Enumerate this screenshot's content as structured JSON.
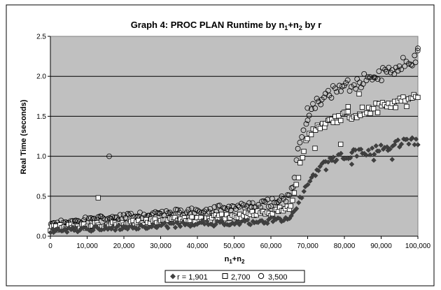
{
  "chart_data": {
    "type": "scatter",
    "title": {
      "main": "Graph 4: PROC PLAN Runtime by n",
      "sub1": "1",
      "mid": "+n",
      "sub2": "2",
      "end": " by r"
    },
    "xlabel": {
      "main": "n",
      "sub1": "1",
      "mid": "+n",
      "sub2": "2"
    },
    "ylabel": "Real Time (seconds)",
    "xlim": [
      0,
      100000
    ],
    "ylim": [
      0,
      2.5
    ],
    "xticks": [
      0,
      10000,
      20000,
      30000,
      40000,
      50000,
      60000,
      70000,
      80000,
      90000,
      100000
    ],
    "xtick_labels": [
      "0",
      "10,000",
      "20,000",
      "30,000",
      "40,000",
      "50,000",
      "60,000",
      "70,000",
      "80,000",
      "90,000",
      "100,000"
    ],
    "yticks": [
      0,
      0.5,
      1.0,
      1.5,
      2.0,
      2.5
    ],
    "ytick_labels": [
      "0.0",
      "0.5",
      "1.0",
      "1.5",
      "2.0",
      "2.5"
    ],
    "grid": "horizontal",
    "plot_background": "#c0c0c0",
    "legend": {
      "placement": "bottom",
      "entries": [
        {
          "label": "r = 1,901",
          "marker": "diamond-filled"
        },
        {
          "label": "2,700",
          "marker": "square-open"
        },
        {
          "label": "3,500",
          "marker": "circle-open"
        }
      ]
    },
    "series": [
      {
        "name": "r = 1,901",
        "marker": "diamond-filled",
        "x": [
          0,
          5000,
          10000,
          15000,
          20000,
          25000,
          30000,
          35000,
          40000,
          45000,
          50000,
          55000,
          60000,
          64000,
          66000,
          68000,
          70000,
          72000,
          74000,
          76000,
          78000,
          80000,
          82000,
          84000,
          86000,
          88000,
          90000,
          92000,
          94000,
          96000,
          98000,
          100000
        ],
        "y": [
          0.06,
          0.08,
          0.09,
          0.1,
          0.11,
          0.12,
          0.13,
          0.14,
          0.15,
          0.16,
          0.17,
          0.18,
          0.2,
          0.22,
          0.26,
          0.45,
          0.65,
          0.8,
          0.9,
          0.95,
          0.98,
          1.0,
          1.03,
          1.05,
          1.06,
          1.08,
          1.1,
          1.12,
          1.14,
          1.16,
          1.18,
          1.2
        ],
        "outliers": [
          [
            75000,
            0.83
          ],
          [
            82000,
            0.9
          ],
          [
            88000,
            0.95
          ],
          [
            93000,
            0.96
          ]
        ]
      },
      {
        "name": "2,700",
        "marker": "square-open",
        "x": [
          0,
          5000,
          10000,
          15000,
          20000,
          25000,
          30000,
          35000,
          40000,
          45000,
          50000,
          55000,
          60000,
          64000,
          66000,
          68000,
          70000,
          72000,
          74000,
          76000,
          78000,
          80000,
          82000,
          84000,
          86000,
          88000,
          90000,
          92000,
          94000,
          96000,
          98000,
          100000
        ],
        "y": [
          0.1,
          0.12,
          0.13,
          0.15,
          0.16,
          0.17,
          0.19,
          0.2,
          0.22,
          0.23,
          0.25,
          0.27,
          0.3,
          0.33,
          0.42,
          0.9,
          1.25,
          1.33,
          1.38,
          1.42,
          1.46,
          1.49,
          1.52,
          1.55,
          1.57,
          1.59,
          1.61,
          1.63,
          1.65,
          1.67,
          1.7,
          1.72
        ],
        "outliers": [
          [
            13000,
            0.48
          ],
          [
            72000,
            1.1
          ],
          [
            79000,
            1.15
          ],
          [
            81000,
            1.62
          ],
          [
            84000,
            1.78
          ]
        ]
      },
      {
        "name": "3,500",
        "marker": "circle-open",
        "x": [
          0,
          5000,
          10000,
          15000,
          20000,
          25000,
          30000,
          35000,
          40000,
          45000,
          50000,
          55000,
          60000,
          64000,
          66000,
          68000,
          70000,
          72000,
          74000,
          76000,
          78000,
          80000,
          82000,
          84000,
          86000,
          88000,
          90000,
          92000,
          94000,
          96000,
          98000,
          100000
        ],
        "y": [
          0.15,
          0.18,
          0.2,
          0.22,
          0.24,
          0.26,
          0.28,
          0.3,
          0.32,
          0.34,
          0.36,
          0.39,
          0.42,
          0.46,
          0.6,
          1.2,
          1.55,
          1.65,
          1.72,
          1.78,
          1.83,
          1.87,
          1.9,
          1.93,
          1.96,
          1.99,
          2.02,
          2.06,
          2.1,
          2.15,
          2.2,
          2.25
        ],
        "outliers": [
          [
            16000,
            1.0
          ],
          [
            70000,
            1.45
          ],
          [
            100000,
            2.35
          ]
        ]
      }
    ]
  }
}
